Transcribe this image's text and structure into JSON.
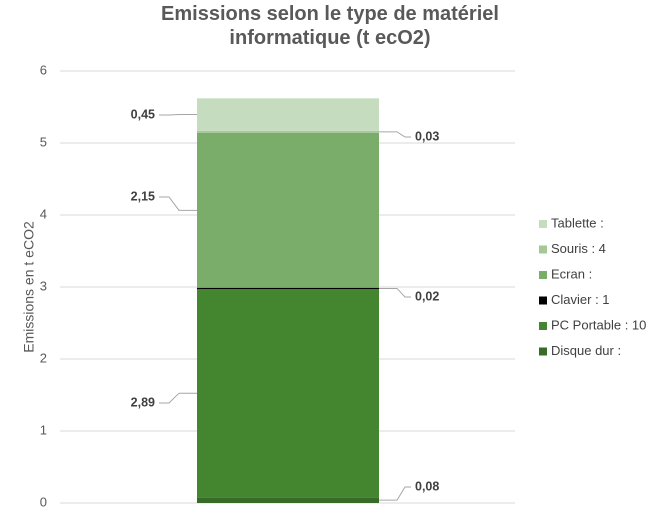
{
  "chart_data": {
    "type": "stacked_bar",
    "title": "Emissions selon le type de matériel informatique (t ecO2)",
    "y_label": "Emissions en t eCO2",
    "categories": [
      null
    ],
    "series": [
      {
        "name": "Disque dur :",
        "color": "#386b27",
        "values": [
          0.08
        ],
        "value_labels": [
          "0,08"
        ]
      },
      {
        "name": "PC Portable : 10",
        "color": "#43862f",
        "values": [
          2.89
        ],
        "value_labels": [
          "2,89"
        ]
      },
      {
        "name": "Clavier : 1",
        "color": "#000000",
        "values": [
          0.02
        ],
        "value_labels": [
          "0,02"
        ]
      },
      {
        "name": "Ecran :",
        "color": "#7aac6a",
        "values": [
          2.15
        ],
        "value_labels": [
          "2,15"
        ]
      },
      {
        "name": "Souris : 4",
        "color": "#a4c898",
        "values": [
          0.03
        ],
        "value_labels": [
          "0,03"
        ]
      },
      {
        "name": "Tablette :",
        "color": "#c6dcbf",
        "values": [
          0.45
        ],
        "value_labels": [
          "0,45"
        ]
      }
    ],
    "ylim": [
      0,
      6
    ],
    "yticks": [
      0,
      1,
      2,
      3,
      4,
      5,
      6
    ],
    "grid": true
  }
}
